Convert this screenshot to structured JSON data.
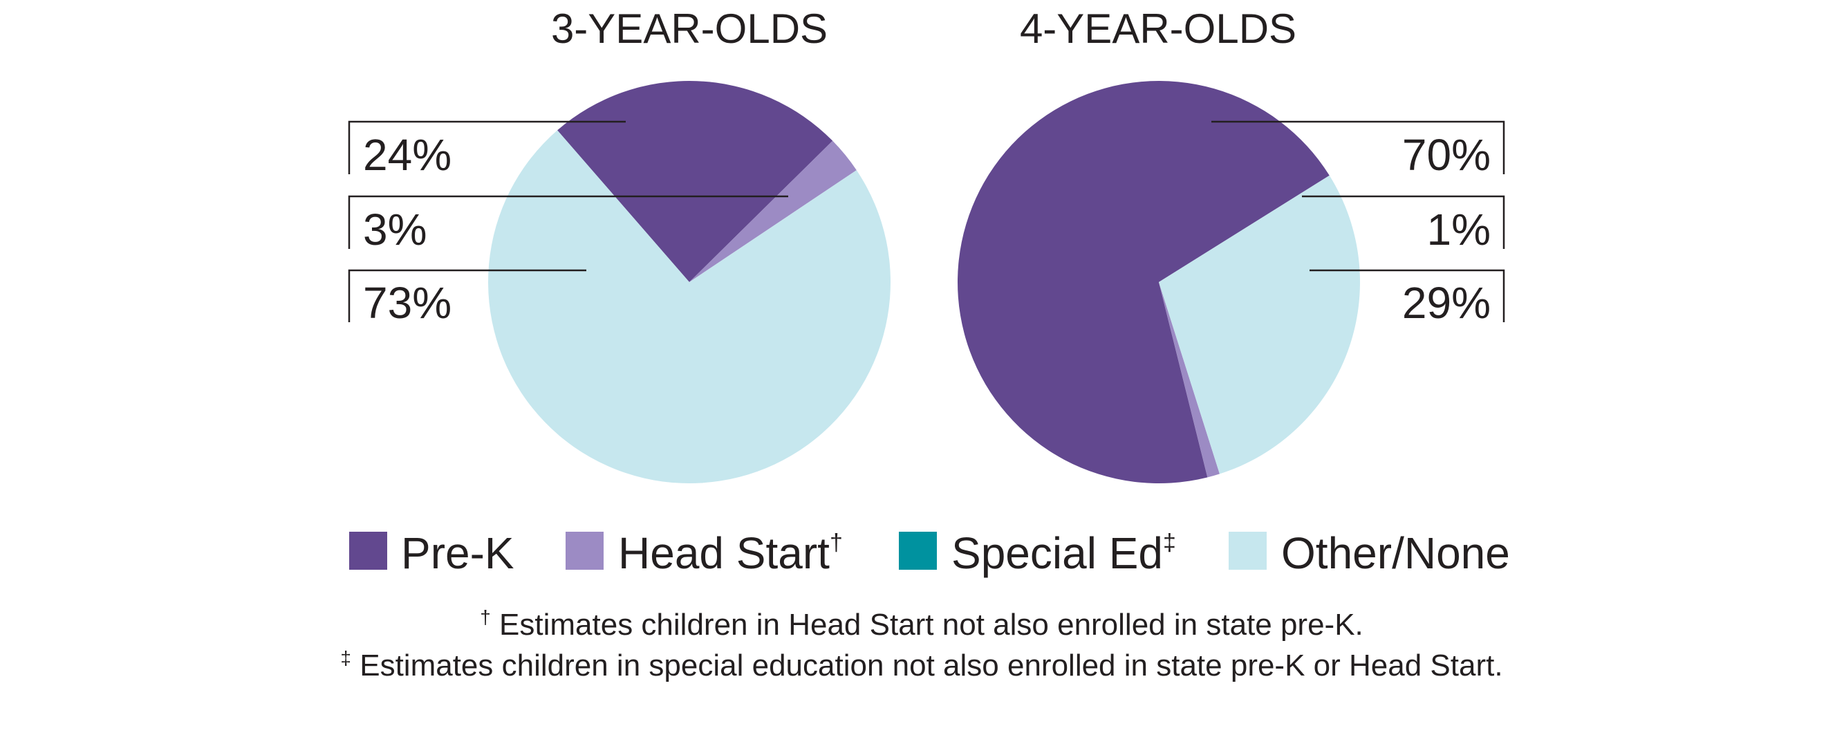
{
  "chart_data": [
    {
      "type": "pie",
      "title": "3-YEAR-OLDS",
      "slices": [
        {
          "label": "Pre-K",
          "value": 24,
          "display": "24%",
          "color": "#62488f"
        },
        {
          "label": "Head Start",
          "value": 3,
          "display": "3%",
          "color": "#9c8bc4"
        },
        {
          "label": "Other/None",
          "value": 73,
          "display": "73%",
          "color": "#c6e7ee"
        }
      ]
    },
    {
      "type": "pie",
      "title": "4-YEAR-OLDS",
      "slices": [
        {
          "label": "Pre-K",
          "value": 70,
          "display": "70%",
          "color": "#62488f"
        },
        {
          "label": "Head Start",
          "value": 1,
          "display": "1%",
          "color": "#9c8bc4"
        },
        {
          "label": "Other/None",
          "value": 29,
          "display": "29%",
          "color": "#c6e7ee"
        }
      ]
    }
  ],
  "legend": [
    {
      "label": "Pre-K",
      "mark": "",
      "color": "#62488f"
    },
    {
      "label": "Head Start",
      "mark": "†",
      "color": "#9c8bc4"
    },
    {
      "label": "Special Ed",
      "mark": "‡",
      "color": "#00929f"
    },
    {
      "label": "Other/None",
      "mark": "",
      "color": "#c6e7ee"
    }
  ],
  "footnotes": [
    {
      "mark": "†",
      "text": "Estimates children in Head Start not also enrolled in state pre-K."
    },
    {
      "mark": "‡",
      "text": "Estimates children in special education not also enrolled in state pre-K or Head Start."
    }
  ]
}
